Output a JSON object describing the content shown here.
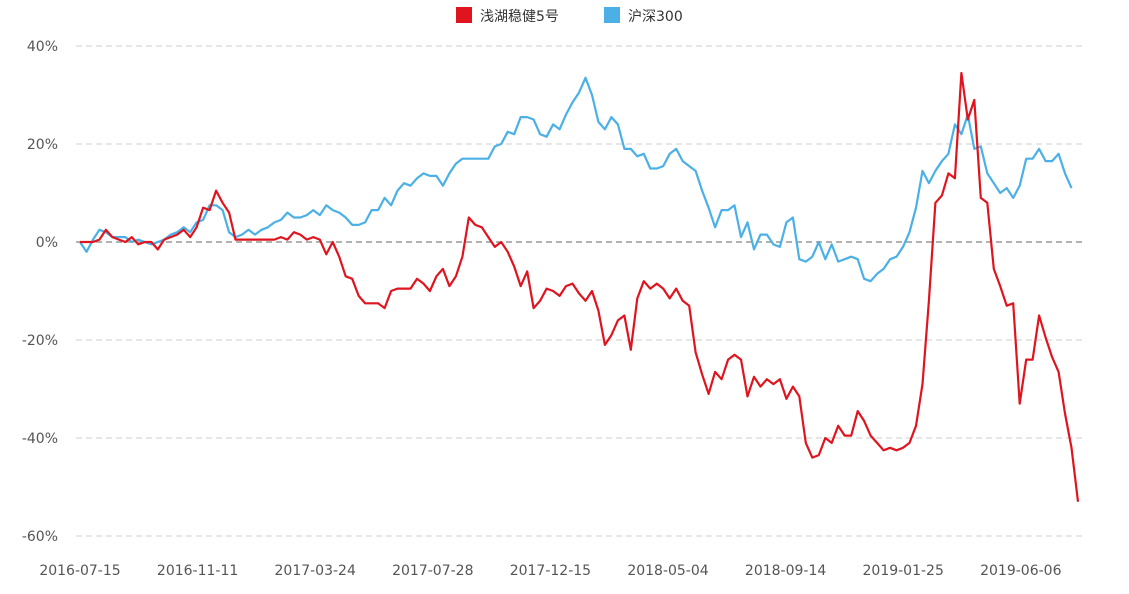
{
  "chart_data": {
    "type": "line",
    "y_unit": "%",
    "ylim": [
      -60,
      40
    ],
    "yticks": [
      40,
      20,
      0,
      -20,
      -40,
      -60
    ],
    "ytick_labels": [
      "40%",
      "20%",
      "0%",
      "-20%",
      "-40%",
      "-60%"
    ],
    "xticks": [
      "2016-07-15",
      "2016-11-11",
      "2017-03-24",
      "2017-07-28",
      "2017-12-15",
      "2018-05-04",
      "2018-09-14",
      "2019-01-25",
      "2019-06-06"
    ],
    "grid": true,
    "legend_position": "top-center",
    "series": [
      {
        "name": "浅湖稳健5号",
        "color": "#e0141e",
        "values": [
          [
            0,
            0
          ],
          [
            2,
            0
          ],
          [
            3,
            0.5
          ],
          [
            4,
            2.5
          ],
          [
            5,
            1
          ],
          [
            6,
            0.5
          ],
          [
            7,
            0
          ],
          [
            8,
            1
          ],
          [
            9,
            -0.5
          ],
          [
            10,
            0
          ],
          [
            11,
            0
          ],
          [
            12,
            -1.5
          ],
          [
            13,
            0.5
          ],
          [
            14,
            1
          ],
          [
            15,
            1.5
          ],
          [
            16,
            2.5
          ],
          [
            17,
            1
          ],
          [
            18,
            3
          ],
          [
            19,
            7
          ],
          [
            20,
            6.5
          ],
          [
            21,
            10.5
          ],
          [
            22,
            8
          ],
          [
            23,
            6
          ],
          [
            24,
            0.5
          ],
          [
            25,
            0.5
          ],
          [
            26,
            0.5
          ],
          [
            27,
            0.5
          ],
          [
            28,
            0.5
          ],
          [
            29,
            0.5
          ],
          [
            30,
            0.5
          ],
          [
            31,
            1
          ],
          [
            32,
            0.5
          ],
          [
            33,
            2
          ],
          [
            34,
            1.5
          ],
          [
            35,
            0.5
          ],
          [
            36,
            1
          ],
          [
            37,
            0.5
          ],
          [
            38,
            -2.5
          ],
          [
            39,
            0
          ],
          [
            40,
            -3
          ],
          [
            41,
            -7
          ],
          [
            42,
            -7.5
          ],
          [
            43,
            -11
          ],
          [
            44,
            -12.5
          ],
          [
            45,
            -12.5
          ],
          [
            46,
            -12.5
          ],
          [
            47,
            -13.5
          ],
          [
            48,
            -10
          ],
          [
            49,
            -9.5
          ],
          [
            50,
            -9.5
          ],
          [
            51,
            -9.5
          ],
          [
            52,
            -7.5
          ],
          [
            53,
            -8.5
          ],
          [
            54,
            -10
          ],
          [
            55,
            -7
          ],
          [
            56,
            -5.5
          ],
          [
            57,
            -9
          ],
          [
            58,
            -7
          ],
          [
            59,
            -3
          ],
          [
            60,
            5
          ],
          [
            61,
            3.5
          ],
          [
            62,
            3
          ],
          [
            63,
            1
          ],
          [
            64,
            -1
          ],
          [
            65,
            0
          ],
          [
            66,
            -2
          ],
          [
            67,
            -5
          ],
          [
            68,
            -9
          ],
          [
            69,
            -6
          ],
          [
            70,
            -13.5
          ],
          [
            71,
            -12
          ],
          [
            72,
            -9.5
          ],
          [
            73,
            -10
          ],
          [
            74,
            -11
          ],
          [
            75,
            -9
          ],
          [
            76,
            -8.5
          ],
          [
            77,
            -10.5
          ],
          [
            78,
            -12
          ],
          [
            79,
            -10
          ],
          [
            80,
            -14
          ],
          [
            81,
            -21
          ],
          [
            82,
            -19
          ],
          [
            83,
            -16
          ],
          [
            84,
            -15
          ],
          [
            85,
            -22
          ],
          [
            86,
            -11.5
          ],
          [
            87,
            -8
          ],
          [
            88,
            -9.5
          ],
          [
            89,
            -8.5
          ],
          [
            90,
            -9.5
          ],
          [
            91,
            -11.5
          ],
          [
            92,
            -9.5
          ],
          [
            93,
            -12
          ],
          [
            94,
            -13
          ],
          [
            95,
            -22.5
          ],
          [
            96,
            -27
          ],
          [
            97,
            -31
          ],
          [
            98,
            -26.5
          ],
          [
            99,
            -28
          ],
          [
            100,
            -24
          ],
          [
            101,
            -23
          ],
          [
            102,
            -24
          ],
          [
            103,
            -31.5
          ],
          [
            104,
            -27.5
          ],
          [
            105,
            -29.5
          ],
          [
            106,
            -28
          ],
          [
            107,
            -29
          ],
          [
            108,
            -28
          ],
          [
            109,
            -32
          ],
          [
            110,
            -29.5
          ],
          [
            111,
            -31.5
          ],
          [
            112,
            -41
          ],
          [
            113,
            -44
          ],
          [
            114,
            -43.5
          ],
          [
            115,
            -40
          ],
          [
            116,
            -41
          ],
          [
            117,
            -37.5
          ],
          [
            118,
            -39.5
          ],
          [
            119,
            -39.5
          ],
          [
            120,
            -34.5
          ],
          [
            121,
            -36.5
          ],
          [
            122,
            -39.5
          ],
          [
            123,
            -41
          ],
          [
            124,
            -42.5
          ],
          [
            125,
            -42
          ],
          [
            126,
            -42.5
          ],
          [
            127,
            -42
          ],
          [
            128,
            -41
          ],
          [
            129,
            -37.5
          ],
          [
            130,
            -29
          ],
          [
            131,
            -12
          ],
          [
            132,
            8
          ],
          [
            133,
            9.5
          ],
          [
            134,
            14
          ],
          [
            135,
            13
          ],
          [
            136,
            34.5
          ],
          [
            137,
            25
          ],
          [
            138,
            29
          ],
          [
            139,
            9
          ],
          [
            140,
            8
          ],
          [
            141,
            -5.5
          ],
          [
            142,
            -9
          ],
          [
            143,
            -13
          ],
          [
            144,
            -12.5
          ],
          [
            145,
            -33
          ],
          [
            146,
            -24
          ],
          [
            147,
            -24
          ],
          [
            148,
            -15
          ],
          [
            149,
            -19.5
          ],
          [
            150,
            -23.5
          ],
          [
            151,
            -26.5
          ],
          [
            152,
            -35
          ],
          [
            153,
            -42
          ],
          [
            154,
            -53
          ]
        ]
      },
      {
        "name": "沪深300",
        "color": "#4ab0e6",
        "values": [
          [
            0,
            0
          ],
          [
            1,
            -2
          ],
          [
            2,
            0.5
          ],
          [
            3,
            2.5
          ],
          [
            4,
            2
          ],
          [
            5,
            1
          ],
          [
            6,
            1
          ],
          [
            7,
            1
          ],
          [
            8,
            0
          ],
          [
            9,
            0.5
          ],
          [
            10,
            0
          ],
          [
            11,
            -0.5
          ],
          [
            12,
            0
          ],
          [
            13,
            0.5
          ],
          [
            14,
            1.5
          ],
          [
            15,
            2
          ],
          [
            16,
            3
          ],
          [
            17,
            2
          ],
          [
            18,
            4
          ],
          [
            19,
            4.5
          ],
          [
            20,
            7.5
          ],
          [
            21,
            7.5
          ],
          [
            22,
            6.5
          ],
          [
            23,
            2
          ],
          [
            24,
            1
          ],
          [
            25,
            1.5
          ],
          [
            26,
            2.5
          ],
          [
            27,
            1.5
          ],
          [
            28,
            2.5
          ],
          [
            29,
            3
          ],
          [
            30,
            4
          ],
          [
            31,
            4.5
          ],
          [
            32,
            6
          ],
          [
            33,
            5
          ],
          [
            34,
            5
          ],
          [
            35,
            5.5
          ],
          [
            36,
            6.5
          ],
          [
            37,
            5.5
          ],
          [
            38,
            7.5
          ],
          [
            39,
            6.5
          ],
          [
            40,
            6
          ],
          [
            41,
            5
          ],
          [
            42,
            3.5
          ],
          [
            43,
            3.5
          ],
          [
            44,
            4
          ],
          [
            45,
            6.5
          ],
          [
            46,
            6.5
          ],
          [
            47,
            9
          ],
          [
            48,
            7.5
          ],
          [
            49,
            10.5
          ],
          [
            50,
            12
          ],
          [
            51,
            11.5
          ],
          [
            52,
            13
          ],
          [
            53,
            14
          ],
          [
            54,
            13.5
          ],
          [
            55,
            13.5
          ],
          [
            56,
            11.5
          ],
          [
            57,
            14
          ],
          [
            58,
            16
          ],
          [
            59,
            17
          ],
          [
            60,
            17
          ],
          [
            61,
            17
          ],
          [
            62,
            17
          ],
          [
            63,
            17
          ],
          [
            64,
            19.5
          ],
          [
            65,
            20
          ],
          [
            66,
            22.5
          ],
          [
            67,
            22
          ],
          [
            68,
            25.5
          ],
          [
            69,
            25.5
          ],
          [
            70,
            25
          ],
          [
            71,
            22
          ],
          [
            72,
            21.5
          ],
          [
            73,
            24
          ],
          [
            74,
            23
          ],
          [
            75,
            26
          ],
          [
            76,
            28.5
          ],
          [
            77,
            30.5
          ],
          [
            78,
            33.5
          ],
          [
            79,
            30
          ],
          [
            80,
            24.5
          ],
          [
            81,
            23
          ],
          [
            82,
            25.5
          ],
          [
            83,
            24
          ],
          [
            84,
            19
          ],
          [
            85,
            19
          ],
          [
            86,
            17.5
          ],
          [
            87,
            18
          ],
          [
            88,
            15
          ],
          [
            89,
            15
          ],
          [
            90,
            15.5
          ],
          [
            91,
            18
          ],
          [
            92,
            19
          ],
          [
            93,
            16.5
          ],
          [
            94,
            15.5
          ],
          [
            95,
            14.5
          ],
          [
            96,
            10.5
          ],
          [
            97,
            7
          ],
          [
            98,
            3
          ],
          [
            99,
            6.5
          ],
          [
            100,
            6.5
          ],
          [
            101,
            7.5
          ],
          [
            102,
            1
          ],
          [
            103,
            4
          ],
          [
            104,
            -1.5
          ],
          [
            105,
            1.5
          ],
          [
            106,
            1.5
          ],
          [
            107,
            -0.5
          ],
          [
            108,
            -1
          ],
          [
            109,
            4
          ],
          [
            110,
            5
          ],
          [
            111,
            -3.5
          ],
          [
            112,
            -4
          ],
          [
            113,
            -3
          ],
          [
            114,
            0
          ],
          [
            115,
            -3.5
          ],
          [
            116,
            -0.5
          ],
          [
            117,
            -4
          ],
          [
            118,
            -3.5
          ],
          [
            119,
            -3
          ],
          [
            120,
            -3.5
          ],
          [
            121,
            -7.5
          ],
          [
            122,
            -8
          ],
          [
            123,
            -6.5
          ],
          [
            124,
            -5.5
          ],
          [
            125,
            -3.5
          ],
          [
            126,
            -3
          ],
          [
            127,
            -1
          ],
          [
            128,
            2
          ],
          [
            129,
            7
          ],
          [
            130,
            14.5
          ],
          [
            131,
            12
          ],
          [
            132,
            14.5
          ],
          [
            133,
            16.5
          ],
          [
            134,
            18
          ],
          [
            135,
            24
          ],
          [
            136,
            22
          ],
          [
            137,
            26
          ],
          [
            138,
            19
          ],
          [
            139,
            19.5
          ],
          [
            140,
            14
          ],
          [
            141,
            12
          ],
          [
            142,
            10
          ],
          [
            143,
            11
          ],
          [
            144,
            9
          ],
          [
            145,
            11.5
          ],
          [
            146,
            17
          ],
          [
            147,
            17
          ],
          [
            148,
            19
          ],
          [
            149,
            16.5
          ],
          [
            150,
            16.5
          ],
          [
            151,
            18
          ],
          [
            152,
            14
          ],
          [
            153,
            11
          ]
        ]
      }
    ],
    "xmax_index": 154
  }
}
